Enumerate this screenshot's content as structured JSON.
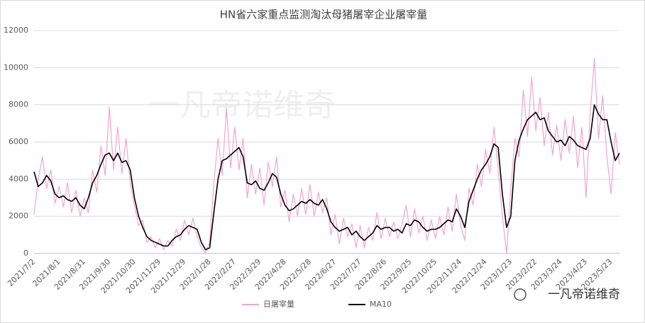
{
  "chart_data": {
    "type": "line",
    "title": "HN省六家重点监测淘汰母猪屠宰企业屠宰量",
    "watermark": "一凡帝诺维奇",
    "brand": "一凡帝诺维奇",
    "ylim": [
      0,
      12000
    ],
    "yticks": [
      0,
      2000,
      4000,
      6000,
      8000,
      10000,
      12000
    ],
    "grid": true,
    "legend": "bottom",
    "categories": [
      "2021/7/2",
      null,
      null,
      null,
      null,
      null,
      "2021/8/1",
      null,
      null,
      null,
      null,
      null,
      "2021/8/31",
      null,
      null,
      null,
      null,
      null,
      "2021/9/30",
      null,
      null,
      null,
      null,
      null,
      "2021/10/30",
      null,
      null,
      null,
      null,
      null,
      "2021/11/29",
      null,
      null,
      null,
      null,
      null,
      "2021/12/29",
      null,
      null,
      null,
      null,
      null,
      "2022/1/28",
      null,
      null,
      null,
      null,
      null,
      "2022/2/27",
      null,
      null,
      null,
      null,
      null,
      "2022/3/29",
      null,
      null,
      null,
      null,
      null,
      "2022/4/28",
      null,
      null,
      null,
      null,
      null,
      "2022/5/28",
      null,
      null,
      null,
      null,
      null,
      "2022/6/27",
      null,
      null,
      null,
      null,
      null,
      "2022/7/27",
      null,
      null,
      null,
      null,
      null,
      "2022/8/26",
      null,
      null,
      null,
      null,
      null,
      "2022/9/25",
      null,
      null,
      null,
      null,
      null,
      "2022/10/25",
      null,
      null,
      null,
      null,
      null,
      "2022/11/24",
      null,
      null,
      null,
      null,
      null,
      "2022/12/24",
      null,
      null,
      null,
      null,
      null,
      "2023/1/23",
      null,
      null,
      null,
      null,
      null,
      "2023/2/22",
      null,
      null,
      null,
      null,
      null,
      "2023/3/24",
      null,
      null,
      null,
      null,
      null,
      "2023/4/23",
      null,
      null,
      null,
      null,
      null,
      "2023/5/23",
      null,
      null
    ],
    "series": [
      {
        "name": "日屠宰量",
        "color": "#f4a6c9",
        "width": 1.2,
        "values": [
          2100,
          4000,
          5200,
          3500,
          4500,
          2700,
          3600,
          2500,
          3800,
          2200,
          3400,
          2000,
          3000,
          2200,
          4500,
          3300,
          5800,
          4200,
          7900,
          4500,
          6800,
          4300,
          6200,
          3800,
          2600,
          1500,
          1800,
          600,
          900,
          300,
          800,
          200,
          700,
          400,
          1300,
          700,
          1800,
          1000,
          1900,
          900,
          300,
          0,
          600,
          3800,
          6200,
          4200,
          7800,
          4600,
          6800,
          4500,
          6200,
          3000,
          4800,
          3200,
          4600,
          2600,
          4900,
          3600,
          5200,
          2500,
          3400,
          1700,
          3200,
          2000,
          3500,
          2100,
          3700,
          2000,
          3300,
          2200,
          3000,
          1000,
          2100,
          500,
          1900,
          900,
          1600,
          300,
          1500,
          300,
          1400,
          700,
          2200,
          800,
          1900,
          900,
          1700,
          800,
          1600,
          2600,
          900,
          2400,
          1100,
          2000,
          700,
          1800,
          800,
          2000,
          1000,
          2500,
          1200,
          3200,
          1500,
          700,
          3500,
          2600,
          4800,
          3600,
          5600,
          4300,
          6800,
          4500,
          2000,
          0,
          3500,
          6200,
          5200,
          8800,
          6300,
          9500,
          6600,
          8400,
          5800,
          7600,
          5300,
          6900,
          5000,
          7200,
          5400,
          7400,
          4600,
          6800,
          3000,
          7500,
          10500,
          6200,
          8500,
          5200,
          3200,
          6500,
          4800
        ]
      },
      {
        "name": "MA10",
        "color": "#000000",
        "width": 1.6,
        "values": [
          4400,
          3600,
          3800,
          4200,
          3900,
          3200,
          3000,
          3100,
          2900,
          2800,
          3000,
          2600,
          2400,
          3000,
          3800,
          4200,
          4800,
          5300,
          5400,
          5000,
          5400,
          4900,
          5000,
          4500,
          3000,
          2000,
          1400,
          900,
          700,
          600,
          500,
          400,
          400,
          700,
          900,
          1000,
          1300,
          1500,
          1400,
          1300,
          600,
          200,
          300,
          2200,
          4000,
          5000,
          5100,
          5300,
          5500,
          5700,
          5200,
          3800,
          3700,
          3900,
          3500,
          3400,
          3800,
          4300,
          4100,
          3200,
          2600,
          2300,
          2400,
          2600,
          2800,
          2700,
          2900,
          2700,
          2600,
          2900,
          2400,
          1700,
          1400,
          1200,
          1300,
          1400,
          1000,
          1200,
          900,
          700,
          900,
          1100,
          1500,
          1300,
          1400,
          1400,
          1200,
          1300,
          1100,
          1600,
          1500,
          1800,
          1700,
          1400,
          1200,
          1300,
          1300,
          1400,
          1600,
          1800,
          1700,
          2400,
          2000,
          1400,
          2800,
          3400,
          4000,
          4500,
          4800,
          5200,
          5900,
          5700,
          3200,
          1400,
          2000,
          5000,
          6100,
          6700,
          7200,
          7400,
          7600,
          7200,
          7300,
          6600,
          6300,
          6000,
          6100,
          5800,
          6300,
          6100,
          5800,
          5700,
          5600,
          6200,
          8000,
          7500,
          7200,
          7200,
          6000,
          5000,
          5400
        ]
      }
    ]
  }
}
